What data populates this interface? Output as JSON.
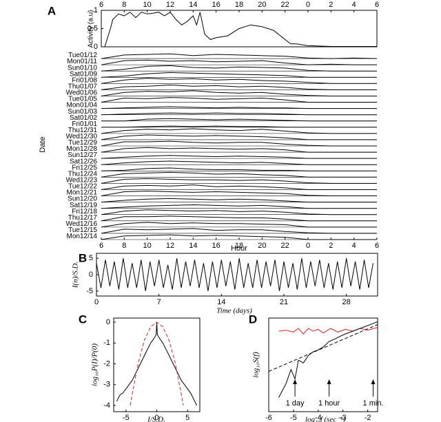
{
  "chart_data": [
    {
      "type": "line",
      "panel_label": "A",
      "ylabel": "Activity (a.u)",
      "color": "#000000",
      "x": [
        6.3,
        6.8,
        7,
        7.5,
        8,
        8.5,
        9,
        9.5,
        10,
        10.5,
        11,
        11.5,
        12,
        12.5,
        13,
        13.5,
        14,
        14.3,
        14.6,
        15,
        15.5,
        16,
        17,
        18,
        19,
        20,
        21,
        22,
        22.5,
        23,
        24,
        25,
        26,
        27,
        28,
        29,
        30
      ],
      "values": [
        0,
        0.5,
        0.75,
        0.9,
        0.85,
        0.95,
        0.8,
        0.95,
        0.9,
        0.92,
        0.95,
        0.85,
        0.95,
        0.75,
        0.6,
        0.7,
        0.85,
        0.6,
        0.95,
        0.35,
        0.2,
        0.25,
        0.3,
        0.5,
        0.6,
        0.55,
        0.45,
        0.2,
        0.08,
        0.08,
        0.03,
        0.02,
        0.01,
        0.01,
        0.01,
        0.01,
        0.01
      ],
      "xlim": [
        6,
        30
      ],
      "xticks": [
        6,
        8,
        10,
        12,
        14,
        16,
        18,
        20,
        22,
        {
          "value": 24,
          "label": "0"
        },
        {
          "value": 26,
          "label": "2"
        },
        {
          "value": 28,
          "label": "4"
        },
        {
          "value": 30,
          "label": "6"
        }
      ],
      "ylim": [
        0,
        1
      ],
      "yticks": [
        0,
        0.5,
        1
      ],
      "xtick_side": "top"
    },
    {
      "type": "raster",
      "xlabel": "Hour",
      "ylabel": "Date",
      "color": "#000000",
      "x": [
        6,
        8,
        10,
        12,
        14,
        16,
        18,
        20,
        22,
        24,
        26,
        28,
        30
      ],
      "xlim": [
        6,
        30
      ],
      "xticks": [
        6,
        8,
        10,
        12,
        14,
        16,
        18,
        20,
        22,
        {
          "value": 24,
          "label": "0"
        },
        {
          "value": 26,
          "label": "2"
        },
        {
          "value": 28,
          "label": "4"
        },
        {
          "value": 30,
          "label": "6"
        }
      ],
      "series": [
        {
          "name": "Tue01/12",
          "values": [
            0,
            0.6,
            0.7,
            0.8,
            0.5,
            0.7,
            0.6,
            0.5,
            0.4,
            0.1,
            0,
            0.1,
            0
          ]
        },
        {
          "name": "Mon01/11",
          "values": [
            0,
            0.7,
            0.8,
            0.6,
            0.7,
            0.5,
            0.6,
            0.7,
            0.3,
            0,
            0.1,
            0,
            0
          ]
        },
        {
          "name": "Sun01/10",
          "values": [
            0,
            0.3,
            0.8,
            0.9,
            0.6,
            0.5,
            0.7,
            0.6,
            0.5,
            0.1,
            0,
            0,
            0
          ]
        },
        {
          "name": "Sat01/09",
          "values": [
            0,
            0.2,
            0.6,
            0.8,
            0.7,
            0.6,
            0.5,
            0.4,
            0.3,
            0,
            0,
            0,
            0
          ]
        },
        {
          "name": "Fri01/08",
          "values": [
            0,
            0.6,
            0.9,
            0.7,
            0.8,
            0.6,
            0.7,
            0.5,
            0.4,
            0.2,
            0,
            0,
            0
          ]
        },
        {
          "name": "Thu01/07",
          "values": [
            0,
            0.5,
            0.6,
            0.8,
            0.6,
            0.7,
            0.5,
            0.6,
            0.4,
            0.1,
            0,
            0,
            0
          ]
        },
        {
          "name": "Wed01/06",
          "values": [
            0,
            0.6,
            0.8,
            0.7,
            0.9,
            0.6,
            0.5,
            0.6,
            0.3,
            0.1,
            0,
            0,
            0
          ]
        },
        {
          "name": "Tue01/05",
          "values": [
            0,
            0.7,
            0.6,
            0.8,
            0.7,
            0.5,
            0.6,
            0.7,
            0.4,
            0,
            0,
            0,
            0
          ]
        },
        {
          "name": "Mon01/04",
          "values": [
            0,
            0.1,
            0.2,
            0.3,
            0.2,
            0.1,
            0.2,
            0.1,
            0.1,
            0,
            0,
            0,
            0
          ]
        },
        {
          "name": "Sun01/03",
          "values": [
            0,
            0.1,
            0.2,
            0.3,
            0.2,
            0.3,
            0.2,
            0.2,
            0.1,
            0,
            0,
            0,
            0
          ]
        },
        {
          "name": "Sat01/02",
          "values": [
            0,
            0,
            0.3,
            0.4,
            0.3,
            0.2,
            0.3,
            0.2,
            0.1,
            0,
            0,
            0,
            0
          ]
        },
        {
          "name": "Fri01/01",
          "values": [
            0,
            0,
            0.1,
            0.2,
            0.1,
            0.2,
            0.1,
            0.1,
            0,
            0,
            0,
            0,
            0
          ]
        },
        {
          "name": "Thu12/31",
          "values": [
            0,
            0.5,
            0.7,
            0.6,
            0.8,
            0.6,
            0.5,
            0.7,
            0.4,
            0.1,
            0,
            0,
            0
          ]
        },
        {
          "name": "Wed12/30",
          "values": [
            0,
            0.6,
            0.8,
            0.7,
            0.6,
            0.7,
            0.6,
            0.5,
            0.3,
            0,
            0,
            0,
            0
          ]
        },
        {
          "name": "Tue12/29",
          "values": [
            0,
            0.7,
            0.7,
            0.8,
            0.6,
            0.5,
            0.6,
            0.6,
            0.3,
            0.1,
            0,
            0,
            0
          ]
        },
        {
          "name": "Mon12/28",
          "values": [
            0,
            0.6,
            0.8,
            0.6,
            0.7,
            0.6,
            0.5,
            0.6,
            0.4,
            0,
            0,
            0,
            0
          ]
        },
        {
          "name": "Sun12/27",
          "values": [
            0,
            0.2,
            0.4,
            0.5,
            0.4,
            0.3,
            0.4,
            0.3,
            0.2,
            0,
            0,
            0,
            0
          ]
        },
        {
          "name": "Sat12/26",
          "values": [
            0,
            0.3,
            0.5,
            0.6,
            0.5,
            0.4,
            0.3,
            0.4,
            0.2,
            0,
            0,
            0,
            0
          ]
        },
        {
          "name": "Fri12/25",
          "values": [
            0,
            0.1,
            0.4,
            0.5,
            0.3,
            0.2,
            0.2,
            0.1,
            0.1,
            0,
            0,
            0,
            0
          ]
        },
        {
          "name": "Thu12/24",
          "values": [
            0,
            0.6,
            0.7,
            0.8,
            0.7,
            0.5,
            0.6,
            0.4,
            0.3,
            0,
            0,
            0,
            0
          ]
        },
        {
          "name": "Wed12/23",
          "values": [
            0,
            0.7,
            0.8,
            0.7,
            0.6,
            0.6,
            0.5,
            0.6,
            0.4,
            0.1,
            0,
            0,
            0
          ]
        },
        {
          "name": "Tue12/22",
          "values": [
            0,
            0.6,
            0.7,
            0.6,
            0.8,
            0.5,
            0.6,
            0.5,
            0.3,
            0,
            0,
            0,
            0
          ]
        },
        {
          "name": "Mon12/21",
          "values": [
            0,
            0.7,
            0.8,
            0.7,
            0.6,
            0.7,
            0.6,
            0.5,
            0.4,
            0.1,
            0,
            0,
            0
          ]
        },
        {
          "name": "Sun12/20",
          "values": [
            0,
            0.3,
            0.5,
            0.6,
            0.5,
            0.4,
            0.5,
            0.4,
            0.2,
            0,
            0,
            0,
            0
          ]
        },
        {
          "name": "Sat12/19",
          "values": [
            0,
            0.2,
            0.4,
            0.5,
            0.6,
            0.5,
            0.4,
            0.5,
            0.3,
            0,
            0,
            0,
            0
          ]
        },
        {
          "name": "Fri12/18",
          "values": [
            0,
            0.6,
            0.8,
            0.7,
            0.6,
            0.7,
            0.5,
            0.6,
            0.4,
            0.1,
            0,
            0,
            0
          ]
        },
        {
          "name": "Thu12/17",
          "values": [
            0,
            0.7,
            0.7,
            0.8,
            0.7,
            0.6,
            0.5,
            0.5,
            0.3,
            0,
            0,
            0,
            0
          ]
        },
        {
          "name": "Wed12/16",
          "values": [
            0,
            0.6,
            0.8,
            0.6,
            0.7,
            0.6,
            0.6,
            0.5,
            0.4,
            0,
            0,
            0,
            0
          ]
        },
        {
          "name": "Tue12/15",
          "values": [
            0,
            0.7,
            0.6,
            0.7,
            0.8,
            0.5,
            0.6,
            0.6,
            0.3,
            0.1,
            0,
            0,
            0
          ]
        },
        {
          "name": "Mon12/14",
          "values": [
            0,
            0.6,
            0.7,
            0.8,
            0.6,
            0.7,
            0.6,
            0.5,
            0.4,
            0,
            0,
            0,
            0
          ]
        }
      ]
    },
    {
      "type": "line",
      "panel_label": "B",
      "xlabel": "Time (days)",
      "ylabel": "I(n)/S.D.",
      "color": "#000000",
      "x": [
        0,
        0.5,
        1,
        1.5,
        2,
        2.5,
        3,
        3.5,
        4,
        4.5,
        5,
        5.5,
        6,
        6.5,
        7,
        7.5,
        8,
        8.5,
        9,
        9.5,
        10,
        10.5,
        11,
        11.5,
        12,
        12.5,
        13,
        13.5,
        14,
        14.5,
        15,
        15.5,
        16,
        16.5,
        17,
        17.5,
        18,
        18.5,
        19,
        19.5,
        20,
        20.5,
        21,
        21.5,
        22,
        22.5,
        23,
        23.5,
        24,
        24.5,
        25,
        25.5,
        26,
        26.5,
        27,
        27.5,
        28,
        28.5,
        29,
        29.5,
        30,
        30.5,
        31
      ],
      "values": [
        3.5,
        -4,
        4.5,
        -3.5,
        4,
        -4.5,
        5,
        -4,
        3.5,
        -4,
        4.5,
        -5,
        4,
        -3.5,
        4.5,
        -4,
        3,
        -4.5,
        5,
        -4,
        4,
        -3.5,
        4.5,
        -4,
        3.5,
        -5,
        4,
        -4,
        4.5,
        -3.5,
        4,
        -4.5,
        5,
        -4,
        3.5,
        -4,
        4.5,
        -4,
        4,
        -3.5,
        4.5,
        -5,
        4,
        -4,
        3.5,
        -4.5,
        5,
        -4,
        4,
        -3.5,
        4.5,
        -4,
        3.5,
        -4.5,
        4,
        -4,
        5,
        -3.5,
        4,
        -4.5,
        4.5,
        -4,
        3.5
      ],
      "xlim": [
        0,
        31.5
      ],
      "xticks": [
        0,
        7,
        14,
        21,
        28
      ],
      "ylim": [
        -6.5,
        6.5
      ],
      "yticks": [
        -5,
        0,
        5
      ]
    },
    {
      "type": "line",
      "panel_label": "C",
      "xlabel": "I/S.D.",
      "ylabel": "log₁₀P(I)/P(0)",
      "series": [
        {
          "color": "#000000",
          "style": "solid",
          "x": [
            -6.5,
            -6,
            -5.5,
            -5,
            -4.5,
            -4,
            -3.5,
            -3,
            -2.5,
            -2,
            -1.5,
            -1,
            -0.5,
            -0.1,
            0,
            0.1,
            0.5,
            1,
            1.5,
            2,
            2.5,
            3,
            3.5,
            4,
            4.5,
            5,
            5.5,
            6,
            6.5
          ],
          "values": [
            -3.8,
            -3.5,
            -3.4,
            -3.2,
            -3.0,
            -2.8,
            -2.5,
            -2.2,
            -1.9,
            -1.6,
            -1.3,
            -1.0,
            -0.8,
            -0.6,
            0,
            -0.6,
            -0.8,
            -1.0,
            -1.3,
            -1.6,
            -1.9,
            -2.2,
            -2.5,
            -2.8,
            -3.0,
            -3.2,
            -3.4,
            -3.7,
            -4.0
          ]
        },
        {
          "color": "#e0201b",
          "style": "dashed",
          "x": [
            -4.3,
            -4,
            -3,
            -2,
            -1,
            0,
            1,
            2,
            3,
            4,
            4.3
          ],
          "values": [
            -4.0,
            -3.47,
            -1.95,
            -0.87,
            -0.22,
            0,
            -0.22,
            -0.87,
            -1.95,
            -3.47,
            -4.0
          ]
        }
      ],
      "xlim": [
        -7,
        7
      ],
      "xticks": [
        -5,
        0,
        5
      ],
      "ylim": [
        -4.3,
        0.2
      ],
      "yticks": [
        -4,
        -3,
        -2,
        -1,
        0
      ]
    },
    {
      "type": "line",
      "panel_label": "D",
      "xlabel": "log₁₀f (sec⁻¹)",
      "ylabel": "log₁₀S(f)",
      "series": [
        {
          "color": "#e0201b",
          "style": "solid",
          "x": [
            -5.6,
            -5.3,
            -5.0,
            -4.8,
            -4.6,
            -4.4,
            -4.2,
            -4.0,
            -3.8,
            -3.5,
            -3.2,
            -2.9,
            -2.6,
            -2.3,
            -2.0,
            -1.6
          ],
          "values": [
            8.6,
            8.7,
            8.5,
            8.9,
            8.3,
            8.9,
            8.6,
            8.8,
            8.4,
            8.9,
            8.5,
            8.8,
            8.6,
            8.9,
            8.7,
            9.0
          ]
        },
        {
          "color": "#000000",
          "style": "solid",
          "x": [
            -5.6,
            -5.3,
            -5.1,
            -4.94,
            -4.8,
            -4.6,
            -4.4,
            -4.2,
            -4.0,
            -3.8,
            -3.56,
            -3.3,
            -3.0,
            -2.6,
            -2.2,
            -1.8,
            -1.6
          ],
          "values": [
            1.5,
            3.0,
            4.5,
            3.5,
            5.5,
            5.2,
            6.0,
            6.4,
            6.6,
            6.9,
            7.5,
            7.8,
            8.2,
            8.6,
            9.0,
            9.4,
            9.6
          ]
        },
        {
          "color": "#000000",
          "style": "dashed",
          "x": [
            -6,
            -1.6
          ],
          "values": [
            4.3,
            9.3
          ]
        }
      ],
      "annotations": [
        {
          "text": "1 day",
          "x": -4.94
        },
        {
          "text": "1 hour",
          "x": -3.56
        },
        {
          "text": "1 min.",
          "x": -1.78
        }
      ],
      "xlim": [
        -6,
        -1.6
      ],
      "xticks": [
        -6,
        -5,
        -4,
        -3,
        -2
      ],
      "ylim": [
        0,
        10
      ]
    }
  ]
}
